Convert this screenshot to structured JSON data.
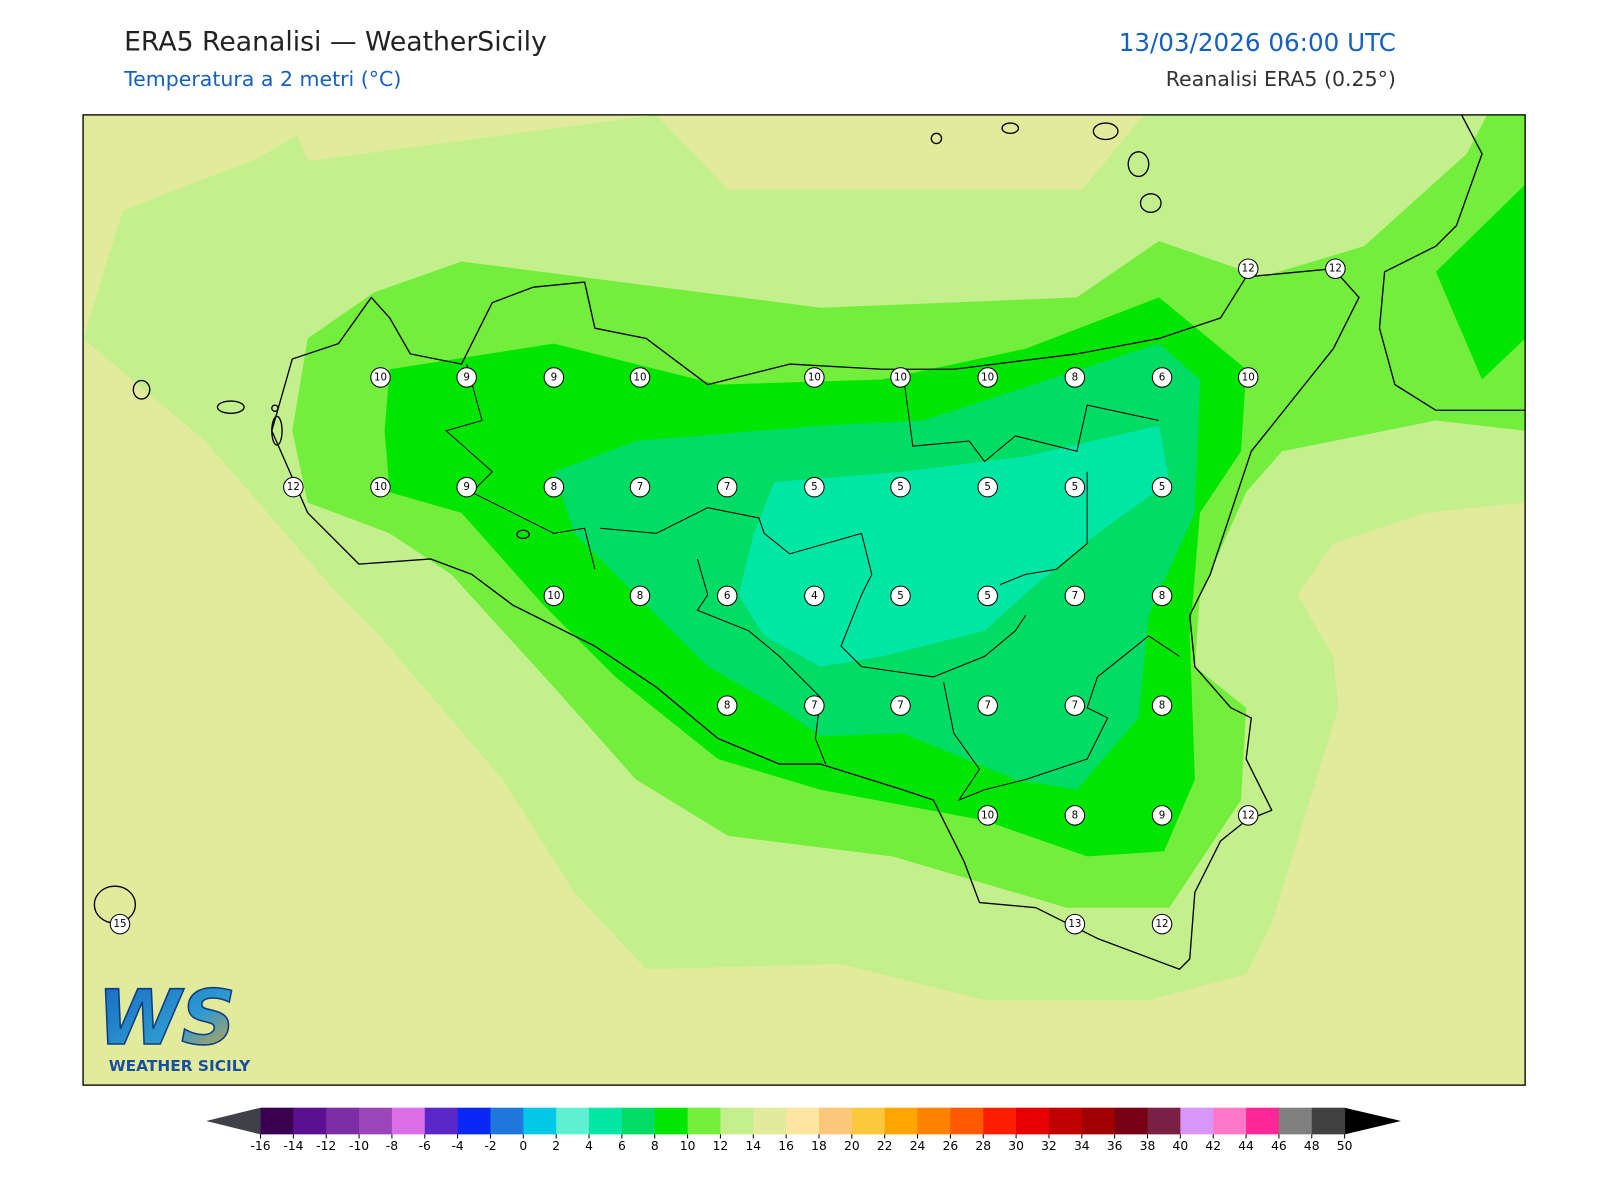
{
  "header": {
    "title": "ERA5 Reanalisi — WeatherSicily",
    "subtitle": "Temperatura a 2 metri (°C)",
    "datetime": "13/03/2026 06:00 UTC",
    "source": "Reanalisi ERA5 (0.25°)"
  },
  "map": {
    "stations": [
      10,
      9,
      9,
      10,
      10,
      10,
      10,
      8,
      6,
      10,
      12,
      10,
      9,
      8,
      7,
      7,
      5,
      5,
      5,
      5,
      5,
      10,
      8,
      6,
      4,
      5,
      5,
      7,
      8,
      8,
      7,
      7,
      7,
      7,
      8,
      10,
      8,
      9,
      12,
      13,
      12,
      15,
      12,
      12
    ]
  },
  "colorbar": {
    "ticks": [
      -16,
      -14,
      -12,
      -10,
      -8,
      -6,
      -4,
      -2,
      0,
      2,
      4,
      6,
      8,
      10,
      12,
      14,
      16,
      18,
      20,
      22,
      24,
      26,
      28,
      30,
      32,
      34,
      36,
      38,
      40,
      42,
      44,
      46,
      48,
      50
    ],
    "colors": [
      "#3c0050",
      "#5a1090",
      "#7b2ea5",
      "#9b45b8",
      "#dc6ee8",
      "#5a28c8",
      "#0a28f5",
      "#1e78dc",
      "#00c8e6",
      "#5ff0d2",
      "#00e6a5",
      "#00dc64",
      "#00e600",
      "#73ee3c",
      "#c3f08c",
      "#e1eb9b",
      "#ffe6a0",
      "#fac878",
      "#fac83c",
      "#ffa500",
      "#ff8200",
      "#ff5a00",
      "#ff1e00",
      "#e60000",
      "#c00000",
      "#a00000",
      "#780014",
      "#7a2044",
      "#d896f8",
      "#ff78c8",
      "#ff2896",
      "#808080",
      "#404040"
    ],
    "under_color": "#404048",
    "over_color": "#000000"
  },
  "logo": {
    "mark": "WS",
    "name": "WEATHER SICILY"
  }
}
